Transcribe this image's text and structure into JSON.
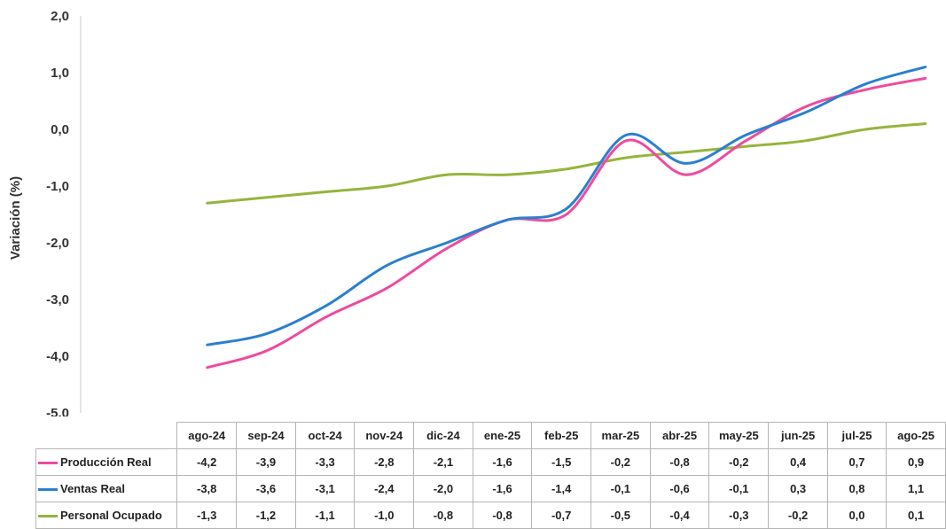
{
  "chart_data": {
    "type": "line",
    "ylabel": "Variación (%)",
    "ylim": [
      -5,
      2
    ],
    "yticks": [
      "2,0",
      "1,0",
      "0,0",
      "-1,0",
      "-2,0",
      "-3,0",
      "-4,0",
      "-5,0"
    ],
    "categories": [
      "ago-24",
      "sep-24",
      "oct-24",
      "nov-24",
      "dic-24",
      "ene-25",
      "feb-25",
      "mar-25",
      "abr-25",
      "may-25",
      "jun-25",
      "jul-25",
      "ago-25"
    ],
    "series": [
      {
        "name": "Producción Real",
        "color": "#ef4a9e",
        "values": [
          -4.2,
          -3.9,
          -3.3,
          -2.8,
          -2.1,
          -1.6,
          -1.5,
          -0.2,
          -0.8,
          -0.2,
          0.4,
          0.7,
          0.9
        ],
        "labels": [
          "-4,2",
          "-3,9",
          "-3,3",
          "-2,8",
          "-2,1",
          "-1,6",
          "-1,5",
          "-0,2",
          "-0,8",
          "-0,2",
          "0,4",
          "0,7",
          "0,9"
        ]
      },
      {
        "name": "Ventas Real",
        "color": "#2a7fd0",
        "values": [
          -3.8,
          -3.6,
          -3.1,
          -2.4,
          -2.0,
          -1.6,
          -1.4,
          -0.1,
          -0.6,
          -0.1,
          0.3,
          0.8,
          1.1
        ],
        "labels": [
          "-3,8",
          "-3,6",
          "-3,1",
          "-2,4",
          "-2,0",
          "-1,6",
          "-1,4",
          "-0,1",
          "-0,6",
          "-0,1",
          "0,3",
          "0,8",
          "1,1"
        ]
      },
      {
        "name": "Personal Ocupado",
        "color": "#95b53c",
        "values": [
          -1.3,
          -1.2,
          -1.1,
          -1.0,
          -0.8,
          -0.8,
          -0.7,
          -0.5,
          -0.4,
          -0.3,
          -0.2,
          0.0,
          0.1
        ],
        "labels": [
          "-1,3",
          "-1,2",
          "-1,1",
          "-1,0",
          "-0,8",
          "-0,8",
          "-0,7",
          "-0,5",
          "-0,4",
          "-0,3",
          "-0,2",
          "0,0",
          "0,1"
        ]
      }
    ]
  }
}
